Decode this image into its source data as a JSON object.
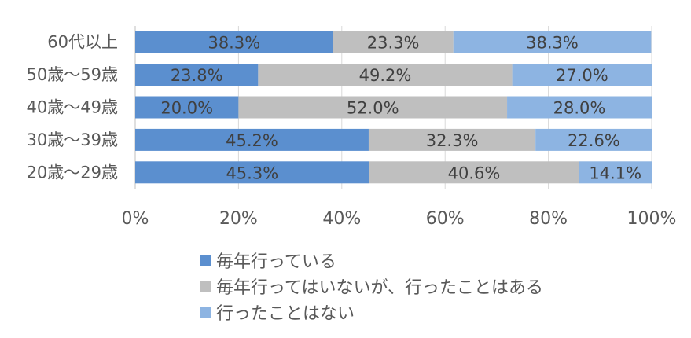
{
  "chart_data": {
    "type": "bar",
    "orientation": "horizontal",
    "stacked": "percent",
    "categories": [
      "60代以上",
      "50歳～59歳",
      "40歳～49歳",
      "30歳～39歳",
      "20歳～29歳"
    ],
    "series": [
      {
        "name": "毎年行っている",
        "color": "#5b8fcf",
        "values": [
          38.3,
          23.8,
          20.0,
          45.2,
          45.3
        ],
        "labels": [
          "38.3%",
          "23.8%",
          "20.0%",
          "45.2%",
          "45.3%"
        ]
      },
      {
        "name": "毎年行ってはいないが、行ったことはある",
        "color": "#bfbfbf",
        "values": [
          23.3,
          49.2,
          52.0,
          32.3,
          40.6
        ],
        "labels": [
          "23.3%",
          "49.2%",
          "52.0%",
          "32.3%",
          "40.6%"
        ]
      },
      {
        "name": "行ったことはない",
        "color": "#8db4e2",
        "values": [
          38.3,
          27.0,
          28.0,
          22.6,
          14.1
        ],
        "labels": [
          "38.3%",
          "27.0%",
          "28.0%",
          "22.6%",
          "14.1%"
        ]
      }
    ],
    "xlim": [
      0,
      100
    ],
    "x_ticks": [
      "0%",
      "20%",
      "40%",
      "60%",
      "80%",
      "100%"
    ],
    "grid": true,
    "legend_position": "bottom"
  }
}
